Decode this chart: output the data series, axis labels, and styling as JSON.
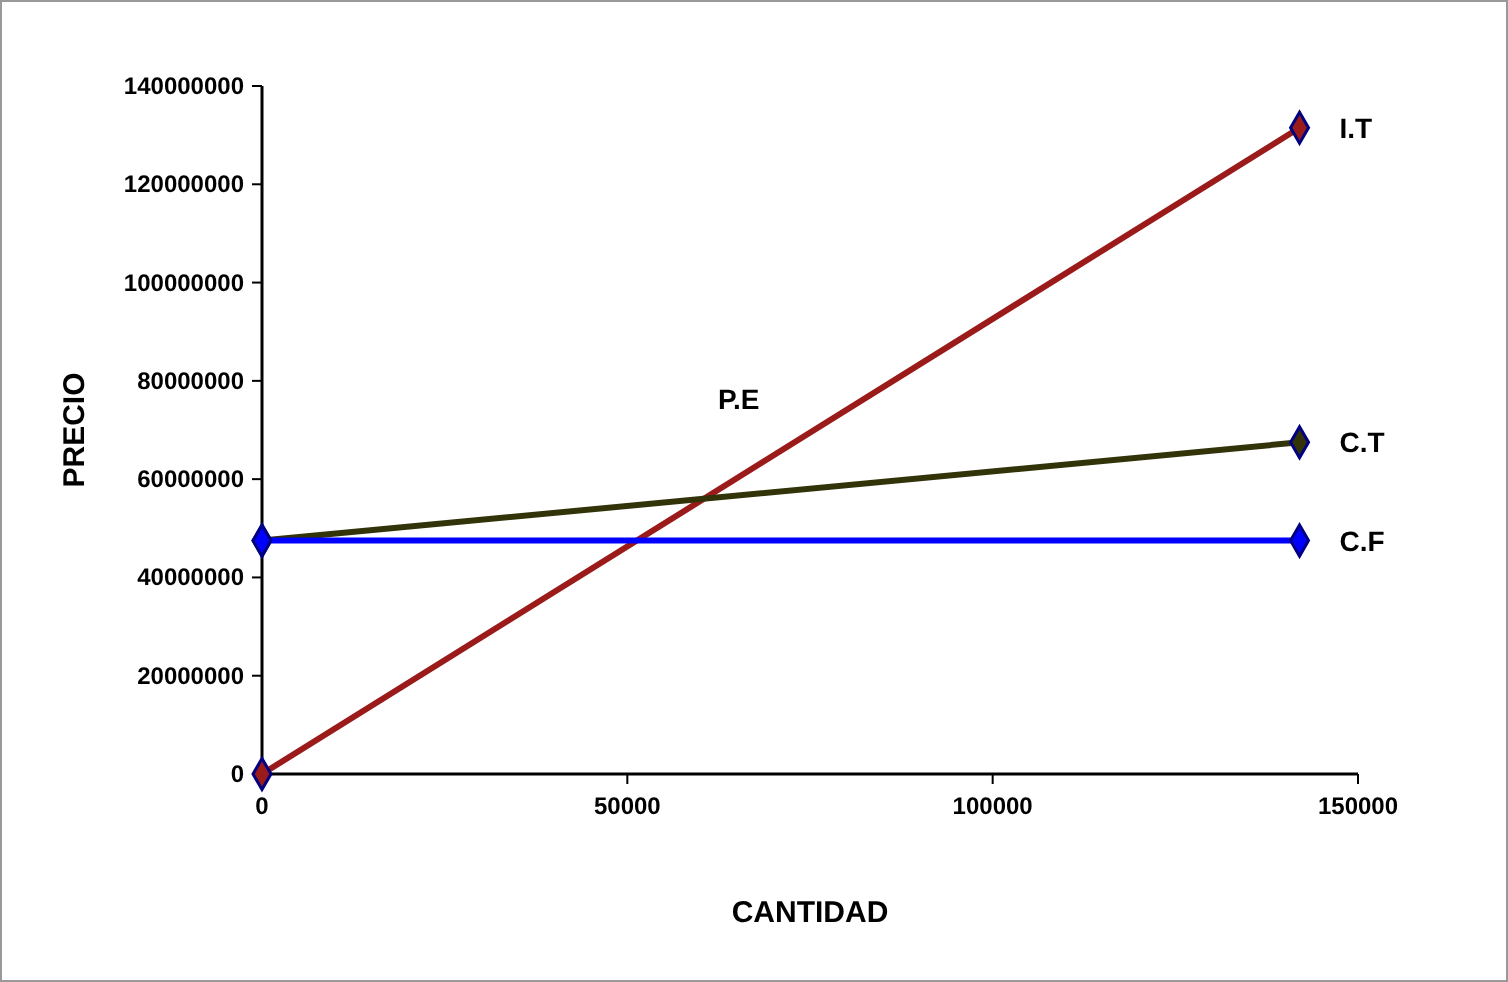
{
  "chart_data": {
    "type": "line",
    "xlabel": "CANTIDAD",
    "ylabel": "PRECIO",
    "x": [
      0,
      142000
    ],
    "series": [
      {
        "name": "I.T",
        "color": "#9b1b1b",
        "values": [
          0,
          131500000
        ]
      },
      {
        "name": "C.T",
        "color": "#33330a",
        "values": [
          47500000,
          67500000
        ]
      },
      {
        "name": "C.F",
        "color": "#0000ff",
        "values": [
          47500000,
          47500000
        ]
      }
    ],
    "xlim": [
      0,
      150000
    ],
    "xticks": [
      0,
      50000,
      100000,
      150000
    ],
    "ylim": [
      0,
      140000000
    ],
    "yticks": [
      0,
      20000000,
      40000000,
      60000000,
      80000000,
      100000000,
      120000000,
      140000000
    ],
    "grid": false,
    "legend": false,
    "marker": "diamond",
    "line_style": "solid",
    "annotations": [
      "P.E"
    ]
  }
}
